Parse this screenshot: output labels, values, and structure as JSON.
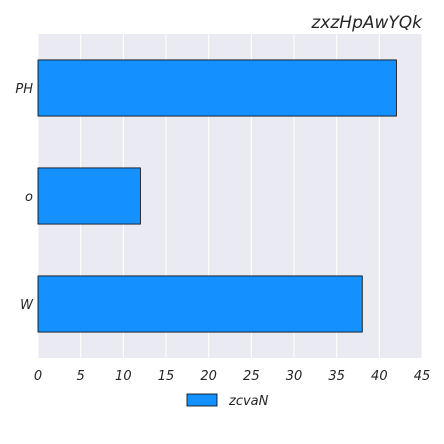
{
  "chart_data": {
    "type": "bar",
    "orientation": "horizontal",
    "title": "zxzHpAwYQk",
    "xlabel": "",
    "ylabel": "",
    "categories": [
      "PH",
      "o",
      "W"
    ],
    "series": [
      {
        "name": "zcvaN",
        "values": [
          42,
          12,
          38
        ],
        "color": "#1491ff"
      }
    ],
    "xlim": [
      0,
      45
    ],
    "xticks": [
      0,
      5,
      10,
      15,
      20,
      25,
      30,
      35,
      40,
      45
    ],
    "grid": true,
    "legend": {
      "position": "bottom-center",
      "entries": [
        "zcvaN"
      ]
    },
    "colors": {
      "plot_background": "#eaeaf2",
      "bar_edge": "#000000",
      "grid": "#ffffff"
    }
  }
}
